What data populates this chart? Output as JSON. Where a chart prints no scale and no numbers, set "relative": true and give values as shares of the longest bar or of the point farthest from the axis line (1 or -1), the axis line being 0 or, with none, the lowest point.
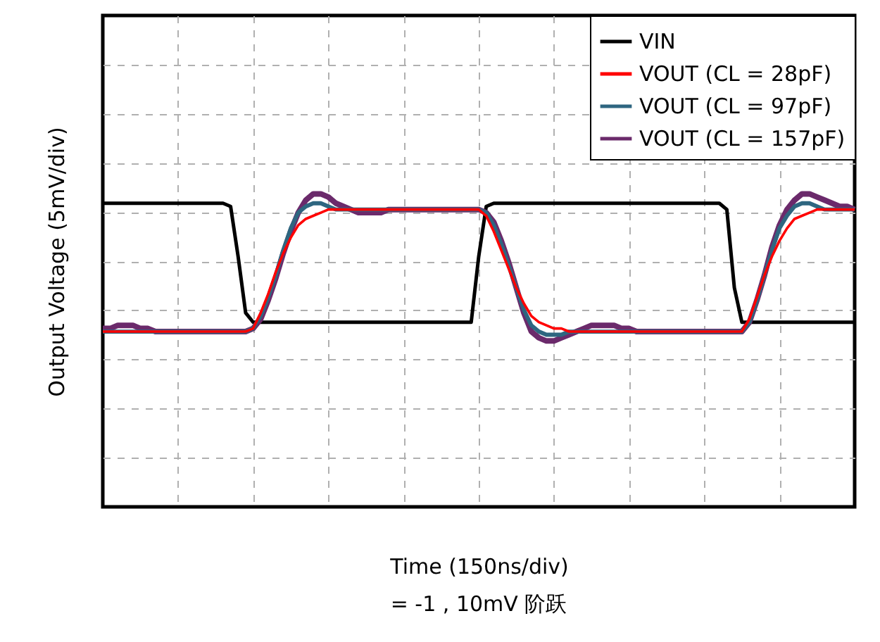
{
  "chart_data": {
    "type": "line",
    "relative": true,
    "xlabel": "Time (150ns/div)",
    "ylabel": "Output Voltage (5mV/div)",
    "annotations": [
      "= -1 , 10mV 阶跃"
    ],
    "grid": true,
    "legend": "top right",
    "line_style": "solid",
    "marker": "none",
    "categories": [
      null,
      null,
      null,
      null,
      null,
      null,
      null,
      null,
      null,
      null,
      null,
      null,
      null,
      null,
      null,
      null,
      null,
      null,
      null,
      null,
      null,
      null,
      null,
      null,
      null,
      null,
      null,
      null,
      null,
      null,
      null,
      null,
      null,
      null,
      null,
      null,
      null,
      null,
      null,
      null,
      null,
      null,
      null,
      null,
      null,
      null,
      null,
      null,
      null,
      null,
      null,
      null,
      null,
      null,
      null,
      null,
      null,
      null,
      null,
      null,
      null,
      null,
      null,
      null,
      null,
      null,
      null,
      null,
      null,
      null,
      null,
      null,
      null,
      null,
      null,
      null,
      null,
      null,
      null,
      null,
      null,
      null,
      null,
      null,
      null,
      null,
      null,
      null,
      null,
      null,
      null,
      null,
      null,
      null,
      null,
      null,
      null,
      null,
      null,
      null,
      null
    ],
    "series": [
      {
        "name": "VIN",
        "color": "#000000",
        "values": [
          0.97,
          0.97,
          0.97,
          0.97,
          0.97,
          0.97,
          0.97,
          0.97,
          0.97,
          0.97,
          0.97,
          0.97,
          0.97,
          0.97,
          0.97,
          0.97,
          0.97,
          0.96,
          0.8,
          0.62,
          0.59,
          0.59,
          0.59,
          0.59,
          0.59,
          0.59,
          0.59,
          0.59,
          0.59,
          0.59,
          0.59,
          0.59,
          0.59,
          0.59,
          0.59,
          0.59,
          0.59,
          0.59,
          0.59,
          0.59,
          0.59,
          0.59,
          0.59,
          0.59,
          0.59,
          0.59,
          0.59,
          0.59,
          0.59,
          0.59,
          0.8,
          0.96,
          0.97,
          0.97,
          0.97,
          0.97,
          0.97,
          0.97,
          0.97,
          0.97,
          0.97,
          0.97,
          0.97,
          0.97,
          0.97,
          0.97,
          0.97,
          0.97,
          0.97,
          0.97,
          0.97,
          0.97,
          0.97,
          0.97,
          0.97,
          0.97,
          0.97,
          0.97,
          0.97,
          0.97,
          0.97,
          0.97,
          0.97,
          0.95,
          0.7,
          0.59,
          0.59,
          0.59,
          0.59,
          0.59,
          0.59,
          0.59,
          0.59,
          0.59,
          0.59,
          0.59,
          0.59,
          0.59,
          0.59,
          0.59,
          0.59
        ]
      },
      {
        "name": "VOUT (CL = 28pF)",
        "color": "#ff0000",
        "values": [
          0.56,
          0.56,
          0.56,
          0.56,
          0.56,
          0.56,
          0.56,
          0.56,
          0.56,
          0.56,
          0.56,
          0.56,
          0.56,
          0.56,
          0.56,
          0.56,
          0.56,
          0.56,
          0.56,
          0.56,
          0.57,
          0.62,
          0.68,
          0.75,
          0.81,
          0.86,
          0.9,
          0.92,
          0.93,
          0.94,
          0.95,
          0.95,
          0.95,
          0.95,
          0.95,
          0.95,
          0.95,
          0.95,
          0.95,
          0.95,
          0.95,
          0.95,
          0.95,
          0.95,
          0.95,
          0.95,
          0.95,
          0.95,
          0.95,
          0.95,
          0.95,
          0.93,
          0.88,
          0.82,
          0.76,
          0.7,
          0.65,
          0.61,
          0.59,
          0.58,
          0.57,
          0.57,
          0.56,
          0.56,
          0.56,
          0.56,
          0.56,
          0.56,
          0.56,
          0.56,
          0.56,
          0.56,
          0.56,
          0.56,
          0.56,
          0.56,
          0.56,
          0.56,
          0.56,
          0.56,
          0.56,
          0.56,
          0.56,
          0.56,
          0.56,
          0.56,
          0.6,
          0.67,
          0.74,
          0.8,
          0.85,
          0.89,
          0.92,
          0.93,
          0.94,
          0.95,
          0.95,
          0.95,
          0.95,
          0.95,
          0.95
        ]
      },
      {
        "name": "VOUT (CL = 97pF)",
        "color": "#2e6680",
        "values": [
          0.56,
          0.56,
          0.56,
          0.56,
          0.56,
          0.56,
          0.56,
          0.56,
          0.56,
          0.56,
          0.56,
          0.56,
          0.56,
          0.56,
          0.56,
          0.56,
          0.56,
          0.56,
          0.56,
          0.56,
          0.57,
          0.61,
          0.67,
          0.74,
          0.82,
          0.89,
          0.94,
          0.96,
          0.97,
          0.97,
          0.96,
          0.95,
          0.95,
          0.95,
          0.95,
          0.95,
          0.95,
          0.95,
          0.95,
          0.95,
          0.95,
          0.95,
          0.95,
          0.95,
          0.95,
          0.95,
          0.95,
          0.95,
          0.95,
          0.95,
          0.95,
          0.94,
          0.9,
          0.84,
          0.77,
          0.7,
          0.63,
          0.58,
          0.56,
          0.55,
          0.55,
          0.55,
          0.56,
          0.56,
          0.56,
          0.56,
          0.56,
          0.56,
          0.56,
          0.56,
          0.56,
          0.56,
          0.56,
          0.56,
          0.56,
          0.56,
          0.56,
          0.56,
          0.56,
          0.56,
          0.56,
          0.56,
          0.56,
          0.56,
          0.56,
          0.56,
          0.59,
          0.66,
          0.74,
          0.82,
          0.89,
          0.93,
          0.96,
          0.97,
          0.97,
          0.96,
          0.95,
          0.95,
          0.95,
          0.95,
          0.95
        ]
      },
      {
        "name": "VOUT (CL = 157pF)",
        "color": "#6b2a6b",
        "values": [
          0.57,
          0.57,
          0.58,
          0.58,
          0.58,
          0.57,
          0.57,
          0.56,
          0.56,
          0.56,
          0.56,
          0.56,
          0.56,
          0.56,
          0.56,
          0.56,
          0.56,
          0.56,
          0.56,
          0.56,
          0.57,
          0.6,
          0.66,
          0.73,
          0.81,
          0.88,
          0.94,
          0.98,
          1.0,
          1.0,
          0.99,
          0.97,
          0.96,
          0.95,
          0.94,
          0.94,
          0.94,
          0.94,
          0.95,
          0.95,
          0.95,
          0.95,
          0.95,
          0.95,
          0.95,
          0.95,
          0.95,
          0.95,
          0.95,
          0.95,
          0.95,
          0.94,
          0.91,
          0.85,
          0.78,
          0.7,
          0.62,
          0.56,
          0.54,
          0.53,
          0.53,
          0.54,
          0.55,
          0.56,
          0.57,
          0.58,
          0.58,
          0.58,
          0.58,
          0.57,
          0.57,
          0.56,
          0.56,
          0.56,
          0.56,
          0.56,
          0.56,
          0.56,
          0.56,
          0.56,
          0.56,
          0.56,
          0.56,
          0.56,
          0.56,
          0.56,
          0.59,
          0.66,
          0.74,
          0.83,
          0.9,
          0.95,
          0.98,
          1.0,
          1.0,
          0.99,
          0.98,
          0.97,
          0.96,
          0.96,
          0.95
        ]
      }
    ]
  }
}
